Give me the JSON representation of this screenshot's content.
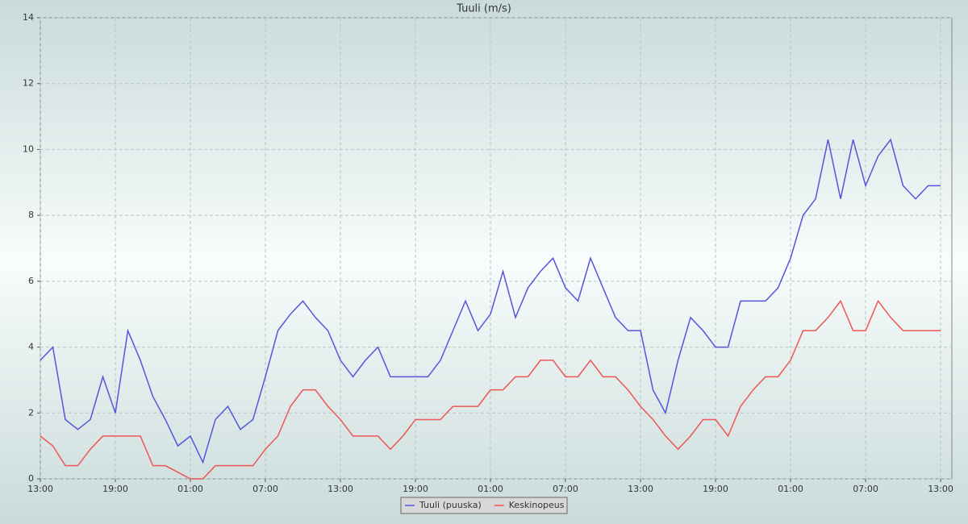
{
  "chart_data": {
    "type": "line",
    "title": "Tuuli (m/s)",
    "x": [
      0,
      1,
      2,
      3,
      4,
      5,
      6,
      7,
      8,
      9,
      10,
      11,
      12,
      13,
      14,
      15,
      16,
      17,
      18,
      19,
      20,
      21,
      22,
      23,
      24,
      25,
      26,
      27,
      28,
      29,
      30,
      31,
      32,
      33,
      34,
      35,
      36,
      37,
      38,
      39,
      40,
      41,
      42,
      43,
      44,
      45,
      46,
      47,
      48,
      49,
      50,
      51,
      52,
      53,
      54,
      55,
      56,
      57,
      58,
      59,
      60,
      61,
      62,
      63,
      64,
      65,
      66,
      67,
      68,
      69,
      70,
      71,
      72
    ],
    "series": [
      {
        "name": "Tuuli (puuska)",
        "color": "#5555dd",
        "values": [
          3.6,
          4.0,
          1.8,
          1.5,
          1.8,
          3.1,
          2.0,
          4.5,
          3.6,
          2.5,
          1.8,
          1.0,
          1.3,
          0.5,
          1.8,
          2.2,
          1.5,
          1.8,
          3.1,
          4.5,
          5.0,
          5.4,
          4.9,
          4.5,
          3.6,
          3.1,
          3.6,
          4.0,
          3.1,
          3.1,
          3.1,
          3.1,
          3.6,
          4.5,
          5.4,
          4.5,
          5.0,
          6.3,
          4.9,
          5.8,
          6.3,
          6.7,
          5.8,
          5.4,
          6.7,
          5.8,
          4.9,
          4.5,
          4.5,
          2.7,
          2.0,
          3.6,
          4.9,
          4.5,
          4.0,
          4.0,
          5.4,
          5.4,
          5.4,
          5.8,
          6.7,
          8.0,
          8.5,
          10.3,
          8.5,
          10.3,
          8.9,
          9.8,
          10.3,
          8.9,
          8.5,
          8.9,
          8.9
        ]
      },
      {
        "name": "Keskinopeus",
        "color": "#ee5555",
        "values": [
          1.3,
          1.0,
          0.4,
          0.4,
          0.9,
          1.3,
          1.3,
          1.3,
          1.3,
          0.4,
          0.4,
          0.2,
          0.0,
          0.0,
          0.4,
          0.4,
          0.4,
          0.4,
          0.9,
          1.3,
          2.2,
          2.7,
          2.7,
          2.2,
          1.8,
          1.3,
          1.3,
          1.3,
          0.9,
          1.3,
          1.8,
          1.8,
          1.8,
          2.2,
          2.2,
          2.2,
          2.7,
          2.7,
          3.1,
          3.1,
          3.6,
          3.6,
          3.1,
          3.1,
          3.6,
          3.1,
          3.1,
          2.7,
          2.2,
          1.8,
          1.3,
          0.9,
          1.3,
          1.8,
          1.8,
          1.3,
          2.2,
          2.7,
          3.1,
          3.1,
          3.6,
          4.5,
          4.5,
          4.9,
          5.4,
          4.5,
          4.5,
          5.4,
          4.9,
          4.5,
          4.5,
          4.5,
          4.5
        ]
      }
    ],
    "xlim": [
      0,
      72.9
    ],
    "xticks": [
      {
        "value": 0,
        "label": "13:00"
      },
      {
        "value": 6,
        "label": "19:00"
      },
      {
        "value": 12,
        "label": "01:00"
      },
      {
        "value": 18,
        "label": "07:00"
      },
      {
        "value": 24,
        "label": "13:00"
      },
      {
        "value": 30,
        "label": "19:00"
      },
      {
        "value": 36,
        "label": "01:00"
      },
      {
        "value": 42,
        "label": "07:00"
      },
      {
        "value": 48,
        "label": "13:00"
      },
      {
        "value": 54,
        "label": "19:00"
      },
      {
        "value": 60,
        "label": "01:00"
      },
      {
        "value": 66,
        "label": "07:00"
      },
      {
        "value": 72,
        "label": "13:00"
      }
    ],
    "ylim": [
      0,
      14
    ],
    "yticks": [
      0,
      2,
      4,
      6,
      8,
      10,
      12,
      14
    ],
    "grid": true
  }
}
